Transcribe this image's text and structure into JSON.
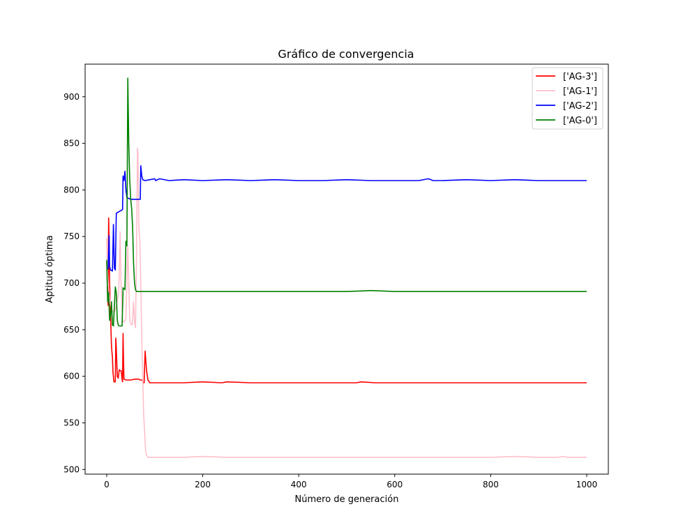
{
  "chart_data": {
    "type": "line",
    "title": "Gráfico de convergencia",
    "xlabel": "Número de generación",
    "ylabel": "Aptitud óptima",
    "xlim": [
      -45,
      1045
    ],
    "ylim": [
      495,
      935
    ],
    "xticks": [
      0,
      200,
      400,
      600,
      800,
      1000
    ],
    "yticks": [
      500,
      550,
      600,
      650,
      700,
      750,
      800,
      850,
      900
    ],
    "grid": false,
    "legend_position": "top-right",
    "series": [
      {
        "name": "['AG-3']",
        "color": "#ff0000",
        "points": [
          [
            0,
            723
          ],
          [
            2,
            690
          ],
          [
            3,
            676
          ],
          [
            4,
            770
          ],
          [
            5,
            745
          ],
          [
            6,
            700
          ],
          [
            8,
            665
          ],
          [
            10,
            632
          ],
          [
            12,
            620
          ],
          [
            13,
            605
          ],
          [
            15,
            594
          ],
          [
            18,
            594
          ],
          [
            19,
            641
          ],
          [
            20,
            630
          ],
          [
            22,
            600
          ],
          [
            24,
            598
          ],
          [
            26,
            607
          ],
          [
            28,
            606
          ],
          [
            30,
            606
          ],
          [
            32,
            597
          ],
          [
            33,
            594
          ],
          [
            34,
            646
          ],
          [
            35,
            620
          ],
          [
            36,
            597
          ],
          [
            40,
            596
          ],
          [
            50,
            596
          ],
          [
            60,
            597
          ],
          [
            66,
            597
          ],
          [
            70,
            596
          ],
          [
            74,
            596
          ],
          [
            76,
            593
          ],
          [
            78,
            593
          ],
          [
            80,
            627
          ],
          [
            81,
            620
          ],
          [
            83,
            606
          ],
          [
            86,
            596
          ],
          [
            90,
            593
          ],
          [
            100,
            593
          ],
          [
            130,
            593
          ],
          [
            160,
            593
          ],
          [
            200,
            594
          ],
          [
            240,
            593
          ],
          [
            250,
            594
          ],
          [
            300,
            593
          ],
          [
            350,
            593
          ],
          [
            400,
            593
          ],
          [
            450,
            593
          ],
          [
            500,
            593
          ],
          [
            520,
            593
          ],
          [
            530,
            594
          ],
          [
            560,
            593
          ],
          [
            600,
            593
          ],
          [
            650,
            593
          ],
          [
            700,
            593
          ],
          [
            750,
            593
          ],
          [
            800,
            593
          ],
          [
            850,
            593
          ],
          [
            900,
            593
          ],
          [
            950,
            593
          ],
          [
            1000,
            593
          ]
        ]
      },
      {
        "name": "['AG-1']",
        "color": "#ffc0cb",
        "points": [
          [
            0,
            748
          ],
          [
            1,
            720
          ],
          [
            3,
            700
          ],
          [
            5,
            690
          ],
          [
            7,
            680
          ],
          [
            10,
            672
          ],
          [
            15,
            668
          ],
          [
            20,
            675
          ],
          [
            25,
            690
          ],
          [
            28,
            755
          ],
          [
            30,
            700
          ],
          [
            33,
            660
          ],
          [
            36,
            658
          ],
          [
            40,
            662
          ],
          [
            42,
            700
          ],
          [
            44,
            740
          ],
          [
            46,
            700
          ],
          [
            48,
            660
          ],
          [
            50,
            656
          ],
          [
            53,
            655
          ],
          [
            56,
            680
          ],
          [
            58,
            658
          ],
          [
            60,
            652
          ],
          [
            62,
            720
          ],
          [
            64,
            845
          ],
          [
            65,
            840
          ],
          [
            67,
            760
          ],
          [
            69,
            745
          ],
          [
            71,
            700
          ],
          [
            73,
            640
          ],
          [
            75,
            600
          ],
          [
            77,
            560
          ],
          [
            79,
            540
          ],
          [
            81,
            520
          ],
          [
            83,
            515
          ],
          [
            86,
            513
          ],
          [
            90,
            513
          ],
          [
            100,
            513
          ],
          [
            130,
            513
          ],
          [
            160,
            513
          ],
          [
            200,
            514
          ],
          [
            250,
            513
          ],
          [
            300,
            513
          ],
          [
            350,
            513
          ],
          [
            400,
            513
          ],
          [
            450,
            513
          ],
          [
            500,
            513
          ],
          [
            550,
            513
          ],
          [
            600,
            513
          ],
          [
            650,
            513
          ],
          [
            700,
            513
          ],
          [
            750,
            513
          ],
          [
            800,
            513
          ],
          [
            850,
            514
          ],
          [
            900,
            513
          ],
          [
            940,
            513
          ],
          [
            950,
            514
          ],
          [
            960,
            513
          ],
          [
            1000,
            513
          ]
        ]
      },
      {
        "name": "['AG-2']",
        "color": "#0000ff",
        "points": [
          [
            0,
            714
          ],
          [
            3,
            716
          ],
          [
            5,
            751
          ],
          [
            6,
            718
          ],
          [
            8,
            714
          ],
          [
            12,
            713
          ],
          [
            14,
            763
          ],
          [
            16,
            716
          ],
          [
            18,
            714
          ],
          [
            20,
            775
          ],
          [
            23,
            776
          ],
          [
            27,
            777
          ],
          [
            30,
            778
          ],
          [
            33,
            779
          ],
          [
            34,
            815
          ],
          [
            36,
            810
          ],
          [
            38,
            820
          ],
          [
            40,
            800
          ],
          [
            42,
            792
          ],
          [
            45,
            791
          ],
          [
            50,
            790
          ],
          [
            60,
            790
          ],
          [
            65,
            790
          ],
          [
            70,
            790
          ],
          [
            71,
            826
          ],
          [
            73,
            815
          ],
          [
            75,
            811
          ],
          [
            80,
            810
          ],
          [
            90,
            811
          ],
          [
            100,
            812
          ],
          [
            102,
            810
          ],
          [
            110,
            812
          ],
          [
            130,
            810
          ],
          [
            160,
            811
          ],
          [
            200,
            810
          ],
          [
            250,
            811
          ],
          [
            300,
            810
          ],
          [
            350,
            811
          ],
          [
            400,
            810
          ],
          [
            450,
            810
          ],
          [
            500,
            811
          ],
          [
            550,
            810
          ],
          [
            600,
            810
          ],
          [
            650,
            810
          ],
          [
            670,
            812
          ],
          [
            680,
            810
          ],
          [
            700,
            810
          ],
          [
            750,
            811
          ],
          [
            800,
            810
          ],
          [
            850,
            811
          ],
          [
            900,
            810
          ],
          [
            950,
            810
          ],
          [
            1000,
            810
          ]
        ]
      },
      {
        "name": "['AG-0'] ",
        "color": "#008000",
        "points": [
          [
            0,
            725
          ],
          [
            1,
            700
          ],
          [
            2,
            680
          ],
          [
            4,
            690
          ],
          [
            6,
            660
          ],
          [
            8,
            665
          ],
          [
            10,
            680
          ],
          [
            12,
            655
          ],
          [
            14,
            654
          ],
          [
            18,
            696
          ],
          [
            20,
            690
          ],
          [
            22,
            660
          ],
          [
            24,
            655
          ],
          [
            26,
            654
          ],
          [
            30,
            654
          ],
          [
            32,
            654
          ],
          [
            34,
            695
          ],
          [
            36,
            694
          ],
          [
            38,
            693
          ],
          [
            40,
            745
          ],
          [
            42,
            740
          ],
          [
            44,
            920
          ],
          [
            46,
            850
          ],
          [
            48,
            810
          ],
          [
            50,
            790
          ],
          [
            52,
            780
          ],
          [
            54,
            760
          ],
          [
            56,
            720
          ],
          [
            58,
            700
          ],
          [
            60,
            693
          ],
          [
            62,
            691
          ],
          [
            70,
            691
          ],
          [
            80,
            691
          ],
          [
            100,
            691
          ],
          [
            150,
            691
          ],
          [
            200,
            691
          ],
          [
            300,
            691
          ],
          [
            400,
            691
          ],
          [
            500,
            691
          ],
          [
            550,
            692
          ],
          [
            600,
            691
          ],
          [
            700,
            691
          ],
          [
            800,
            691
          ],
          [
            900,
            691
          ],
          [
            1000,
            691
          ]
        ]
      }
    ]
  }
}
